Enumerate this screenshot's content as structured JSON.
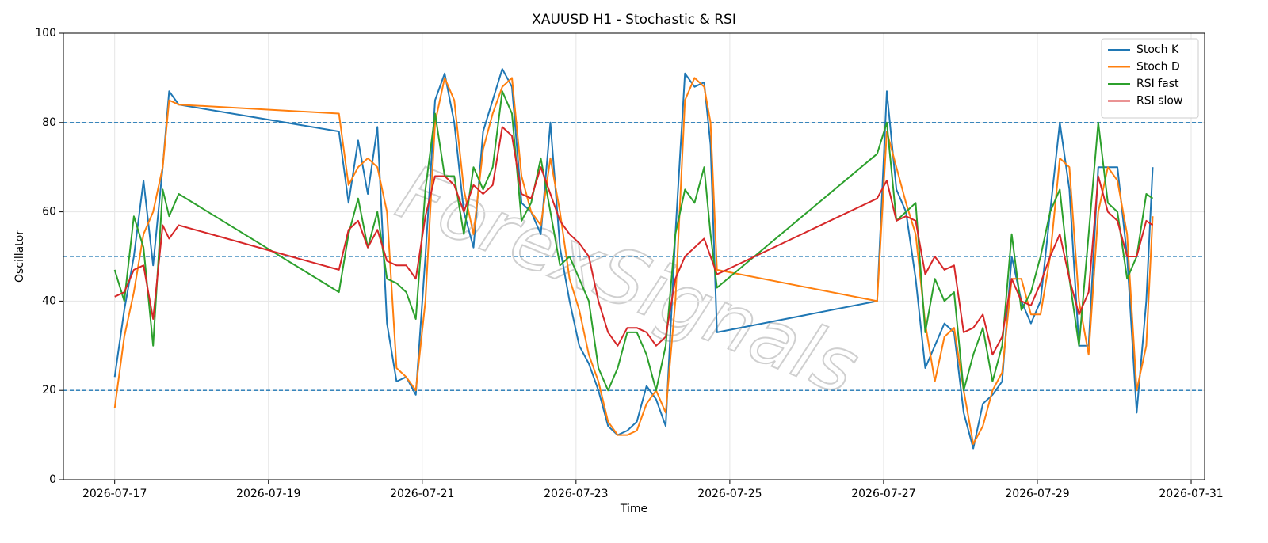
{
  "chart_data": {
    "type": "line",
    "title": "XAUUSD H1 - Stochastic & RSI",
    "x_label": "Time",
    "y_label": "Oscillator",
    "watermark": "ForexSignals",
    "x": [
      "2026-07-17 00:00",
      "2026-07-17 03:00",
      "2026-07-17 06:00",
      "2026-07-17 09:00",
      "2026-07-17 12:00",
      "2026-07-17 15:00",
      "2026-07-17 17:00",
      "2026-07-17 20:00",
      "2026-07-19 22:00",
      "2026-07-20 01:00",
      "2026-07-20 04:00",
      "2026-07-20 07:00",
      "2026-07-20 10:00",
      "2026-07-20 13:00",
      "2026-07-20 16:00",
      "2026-07-20 19:00",
      "2026-07-20 22:00",
      "2026-07-21 01:00",
      "2026-07-21 04:00",
      "2026-07-21 07:00",
      "2026-07-21 10:00",
      "2026-07-21 13:00",
      "2026-07-21 16:00",
      "2026-07-21 19:00",
      "2026-07-21 22:00",
      "2026-07-22 01:00",
      "2026-07-22 04:00",
      "2026-07-22 07:00",
      "2026-07-22 10:00",
      "2026-07-22 13:00",
      "2026-07-22 16:00",
      "2026-07-22 19:00",
      "2026-07-22 22:00",
      "2026-07-23 01:00",
      "2026-07-23 04:00",
      "2026-07-23 07:00",
      "2026-07-23 10:00",
      "2026-07-23 13:00",
      "2026-07-23 16:00",
      "2026-07-23 19:00",
      "2026-07-23 22:00",
      "2026-07-24 01:00",
      "2026-07-24 04:00",
      "2026-07-24 07:00",
      "2026-07-24 10:00",
      "2026-07-24 13:00",
      "2026-07-24 16:00",
      "2026-07-24 18:00",
      "2026-07-24 20:00",
      "2026-07-26 22:00",
      "2026-07-27 01:00",
      "2026-07-27 04:00",
      "2026-07-27 07:00",
      "2026-07-27 10:00",
      "2026-07-27 13:00",
      "2026-07-27 16:00",
      "2026-07-27 19:00",
      "2026-07-27 22:00",
      "2026-07-28 01:00",
      "2026-07-28 04:00",
      "2026-07-28 07:00",
      "2026-07-28 10:00",
      "2026-07-28 13:00",
      "2026-07-28 16:00",
      "2026-07-28 19:00",
      "2026-07-28 22:00",
      "2026-07-29 01:00",
      "2026-07-29 04:00",
      "2026-07-29 07:00",
      "2026-07-29 10:00",
      "2026-07-29 13:00",
      "2026-07-29 16:00",
      "2026-07-29 19:00",
      "2026-07-29 22:00",
      "2026-07-30 01:00",
      "2026-07-30 04:00",
      "2026-07-30 07:00",
      "2026-07-30 10:00",
      "2026-07-30 12:00"
    ],
    "series": [
      {
        "name": "Stoch K",
        "color": "#1f77b4",
        "values": [
          23,
          38,
          50,
          67,
          48,
          70,
          87,
          84,
          78,
          62,
          76,
          64,
          79,
          35,
          22,
          23,
          19,
          50,
          85,
          91,
          80,
          60,
          52,
          78,
          85,
          92,
          88,
          62,
          60,
          55,
          80,
          52,
          40,
          30,
          26,
          20,
          12,
          10,
          11,
          13,
          21,
          18,
          12,
          55,
          91,
          88,
          89,
          75,
          33,
          40,
          87,
          65,
          60,
          45,
          25,
          30,
          35,
          33,
          15,
          7,
          17,
          19,
          22,
          50,
          40,
          35,
          40,
          60,
          80,
          65,
          30,
          30,
          70,
          70,
          70,
          50,
          15,
          40,
          70
        ]
      },
      {
        "name": "Stoch D",
        "color": "#ff7f0e",
        "values": [
          16,
          32,
          42,
          55,
          60,
          70,
          85,
          84,
          82,
          66,
          70,
          72,
          70,
          60,
          25,
          23,
          20,
          40,
          80,
          90,
          85,
          65,
          55,
          74,
          82,
          88,
          90,
          68,
          60,
          57,
          72,
          60,
          45,
          38,
          28,
          22,
          13,
          10,
          10,
          11,
          17,
          20,
          15,
          40,
          85,
          90,
          88,
          80,
          47,
          40,
          78,
          70,
          62,
          55,
          35,
          22,
          32,
          34,
          20,
          8,
          12,
          20,
          24,
          45,
          45,
          37,
          37,
          50,
          72,
          70,
          40,
          28,
          60,
          70,
          67,
          55,
          20,
          30,
          59
        ]
      },
      {
        "name": "RSI fast",
        "color": "#2ca02c",
        "values": [
          47,
          40,
          59,
          52,
          30,
          65,
          59,
          64,
          42,
          55,
          63,
          52,
          60,
          45,
          44,
          42,
          36,
          65,
          82,
          68,
          68,
          55,
          70,
          65,
          70,
          87,
          82,
          58,
          62,
          72,
          60,
          48,
          50,
          45,
          40,
          25,
          20,
          25,
          33,
          33,
          28,
          20,
          30,
          55,
          65,
          62,
          70,
          55,
          43,
          73,
          80,
          58,
          60,
          62,
          33,
          45,
          40,
          42,
          20,
          28,
          34,
          22,
          30,
          55,
          38,
          42,
          50,
          60,
          65,
          45,
          30,
          55,
          80,
          62,
          60,
          45,
          50,
          64,
          63
        ]
      },
      {
        "name": "RSI slow",
        "color": "#d62728",
        "values": [
          41,
          42,
          47,
          48,
          36,
          57,
          54,
          57,
          47,
          56,
          58,
          52,
          56,
          49,
          48,
          48,
          45,
          59,
          68,
          68,
          66,
          60,
          66,
          64,
          66,
          79,
          77,
          64,
          63,
          70,
          64,
          58,
          55,
          53,
          50,
          40,
          33,
          30,
          34,
          34,
          33,
          30,
          32,
          45,
          50,
          52,
          54,
          50,
          46,
          63,
          67,
          58,
          59,
          58,
          46,
          50,
          47,
          48,
          33,
          34,
          37,
          28,
          32,
          45,
          40,
          39,
          44,
          50,
          55,
          45,
          37,
          42,
          68,
          60,
          58,
          50,
          50,
          58,
          57
        ]
      }
    ],
    "xlim": [
      "2026-07-16 08:00",
      "2026-07-31 04:12"
    ],
    "xticks": [
      "2026-07-17",
      "2026-07-19",
      "2026-07-21",
      "2026-07-23",
      "2026-07-25",
      "2026-07-27",
      "2026-07-29",
      "2026-07-31"
    ],
    "ylim": [
      0,
      100
    ],
    "yticks": [
      0,
      20,
      40,
      60,
      80,
      100
    ],
    "hlines": [
      20,
      50,
      80
    ],
    "hline_color": "#1f77b4",
    "grid": true,
    "legend": "upper right"
  }
}
